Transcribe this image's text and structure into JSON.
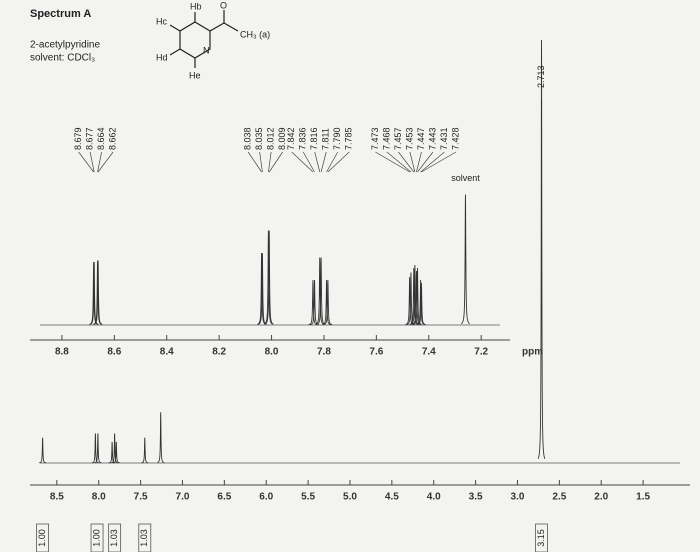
{
  "header": {
    "title": "Spectrum A",
    "compound": "2-acetylpyridine",
    "solvent": "solvent: CDCl₃"
  },
  "molecule": {
    "hb": "Hb",
    "hc": "Hc",
    "hd": "Hd",
    "he": "He",
    "o": "O",
    "n": "N",
    "methyl": "CH₃ (a)"
  },
  "chart_data": [
    {
      "type": "spectrum",
      "x_label": "ppm",
      "xlim": [
        8.96,
        7.09
      ],
      "ylim": [
        0,
        100
      ],
      "xticks": [
        8.8,
        8.6,
        8.4,
        8.2,
        {
          "value": 8,
          "label": "8.0"
        },
        7.8,
        7.6,
        7.4,
        7.2
      ],
      "peaks": {
        "x": [
          8.679,
          8.677,
          8.664,
          8.662,
          8.038,
          8.035,
          8.012,
          8.009,
          7.842,
          7.836,
          7.816,
          7.811,
          7.79,
          7.785,
          7.473,
          7.468,
          7.457,
          7.453,
          7.447,
          7.443,
          7.431,
          7.428
        ],
        "x_labels": [
          "8.679",
          "8.677",
          "8.664",
          "8.662",
          "8.038",
          "8.035",
          "8.012",
          "8.009",
          "7.842",
          "7.836",
          "7.816",
          "7.811",
          "7.790",
          "7.785",
          "7.473",
          "7.468",
          "7.457",
          "7.453",
          "7.447",
          "7.443",
          "7.431",
          "7.428"
        ],
        "heights": [
          42,
          42,
          43,
          43,
          48,
          48,
          63,
          63,
          30,
          30,
          45,
          45,
          30,
          30,
          32,
          35,
          38,
          40,
          36,
          38,
          30,
          28
        ]
      },
      "solvent_peak": {
        "x": 7.26,
        "height": 87,
        "label": "solvent"
      }
    },
    {
      "type": "spectrum",
      "x_label": "ppm",
      "xlim": [
        8.94,
        0.94
      ],
      "ylim": [
        0,
        100
      ],
      "xticks": [
        8.5,
        {
          "value": 8,
          "label": "8.0"
        },
        7.5,
        {
          "value": 7,
          "label": "7.0"
        },
        6.5,
        {
          "value": 6,
          "label": "6.0"
        },
        5.5,
        {
          "value": 5,
          "label": "5.0"
        },
        4.5,
        {
          "value": 4,
          "label": "4.0"
        },
        3.5,
        {
          "value": 3,
          "label": "3.0"
        },
        2.5,
        {
          "value": 2,
          "label": "2.0"
        },
        1.5
      ],
      "peaks": {
        "x": [
          8.67,
          8.04,
          8.01,
          7.84,
          7.81,
          7.79,
          7.45,
          7.26,
          2.713
        ],
        "x_labels": [
          null,
          null,
          null,
          null,
          null,
          null,
          null,
          null,
          "2.713"
        ],
        "heights": [
          6,
          7,
          7,
          5,
          7,
          5,
          6,
          12,
          100
        ]
      },
      "integrals": {
        "x": [
          8.67,
          8.02,
          7.81,
          7.45,
          2.713
        ],
        "values": [
          1,
          1,
          1.03,
          1.03,
          3.15
        ],
        "value_labels": [
          "1.00",
          "1.00",
          "1.03",
          "1.03",
          "3.15"
        ]
      }
    }
  ]
}
